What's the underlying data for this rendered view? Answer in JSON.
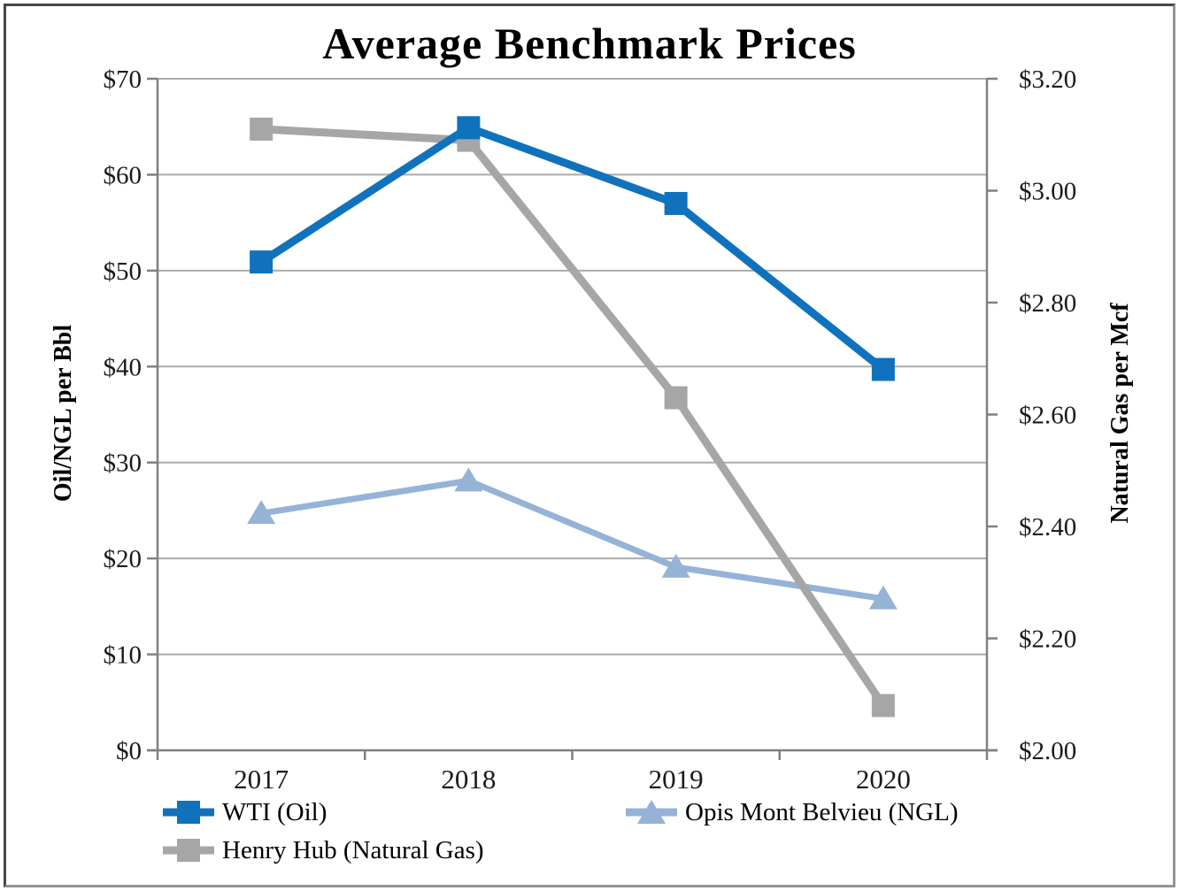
{
  "frame": {
    "background": "#ffffff",
    "border_color": "#6a6a6a"
  },
  "chart_data": {
    "type": "line",
    "title": "Average Benchmark Prices",
    "categories": [
      "2017",
      "2018",
      "2019",
      "2020"
    ],
    "series": [
      {
        "name": "WTI (Oil)",
        "axis": "left",
        "color": "#1072BC",
        "marker": "square",
        "line_width": 9,
        "values": [
          50.9,
          64.9,
          57.0,
          39.7
        ]
      },
      {
        "name": "Opis Mont Belvieu (NGL)",
        "axis": "left",
        "color": "#95B3D7",
        "marker": "triangle",
        "line_width": 7,
        "values": [
          24.7,
          28.1,
          19.1,
          15.8
        ]
      },
      {
        "name": "Henry Hub (Natural Gas)",
        "axis": "right",
        "color": "#A6A6A6",
        "marker": "square",
        "line_width": 9,
        "values": [
          3.11,
          3.09,
          2.63,
          2.08
        ]
      }
    ],
    "left_axis": {
      "title": "Oil/NGL per Bbl",
      "min": 0,
      "max": 70,
      "step": 10,
      "tick_labels": [
        "$0",
        "$10",
        "$20",
        "$30",
        "$40",
        "$50",
        "$60",
        "$70"
      ]
    },
    "right_axis": {
      "title": "Natural Gas per Mcf",
      "min": 2.0,
      "max": 3.2,
      "step": 0.2,
      "tick_labels": [
        "$2.00",
        "$2.20",
        "$2.40",
        "$2.60",
        "$2.80",
        "$3.00",
        "$3.20"
      ]
    },
    "grid": true,
    "legend_position": "bottom",
    "axis_color": "#808080",
    "grid_color": "#ABABAB",
    "text_color": "#1a1a1a"
  }
}
